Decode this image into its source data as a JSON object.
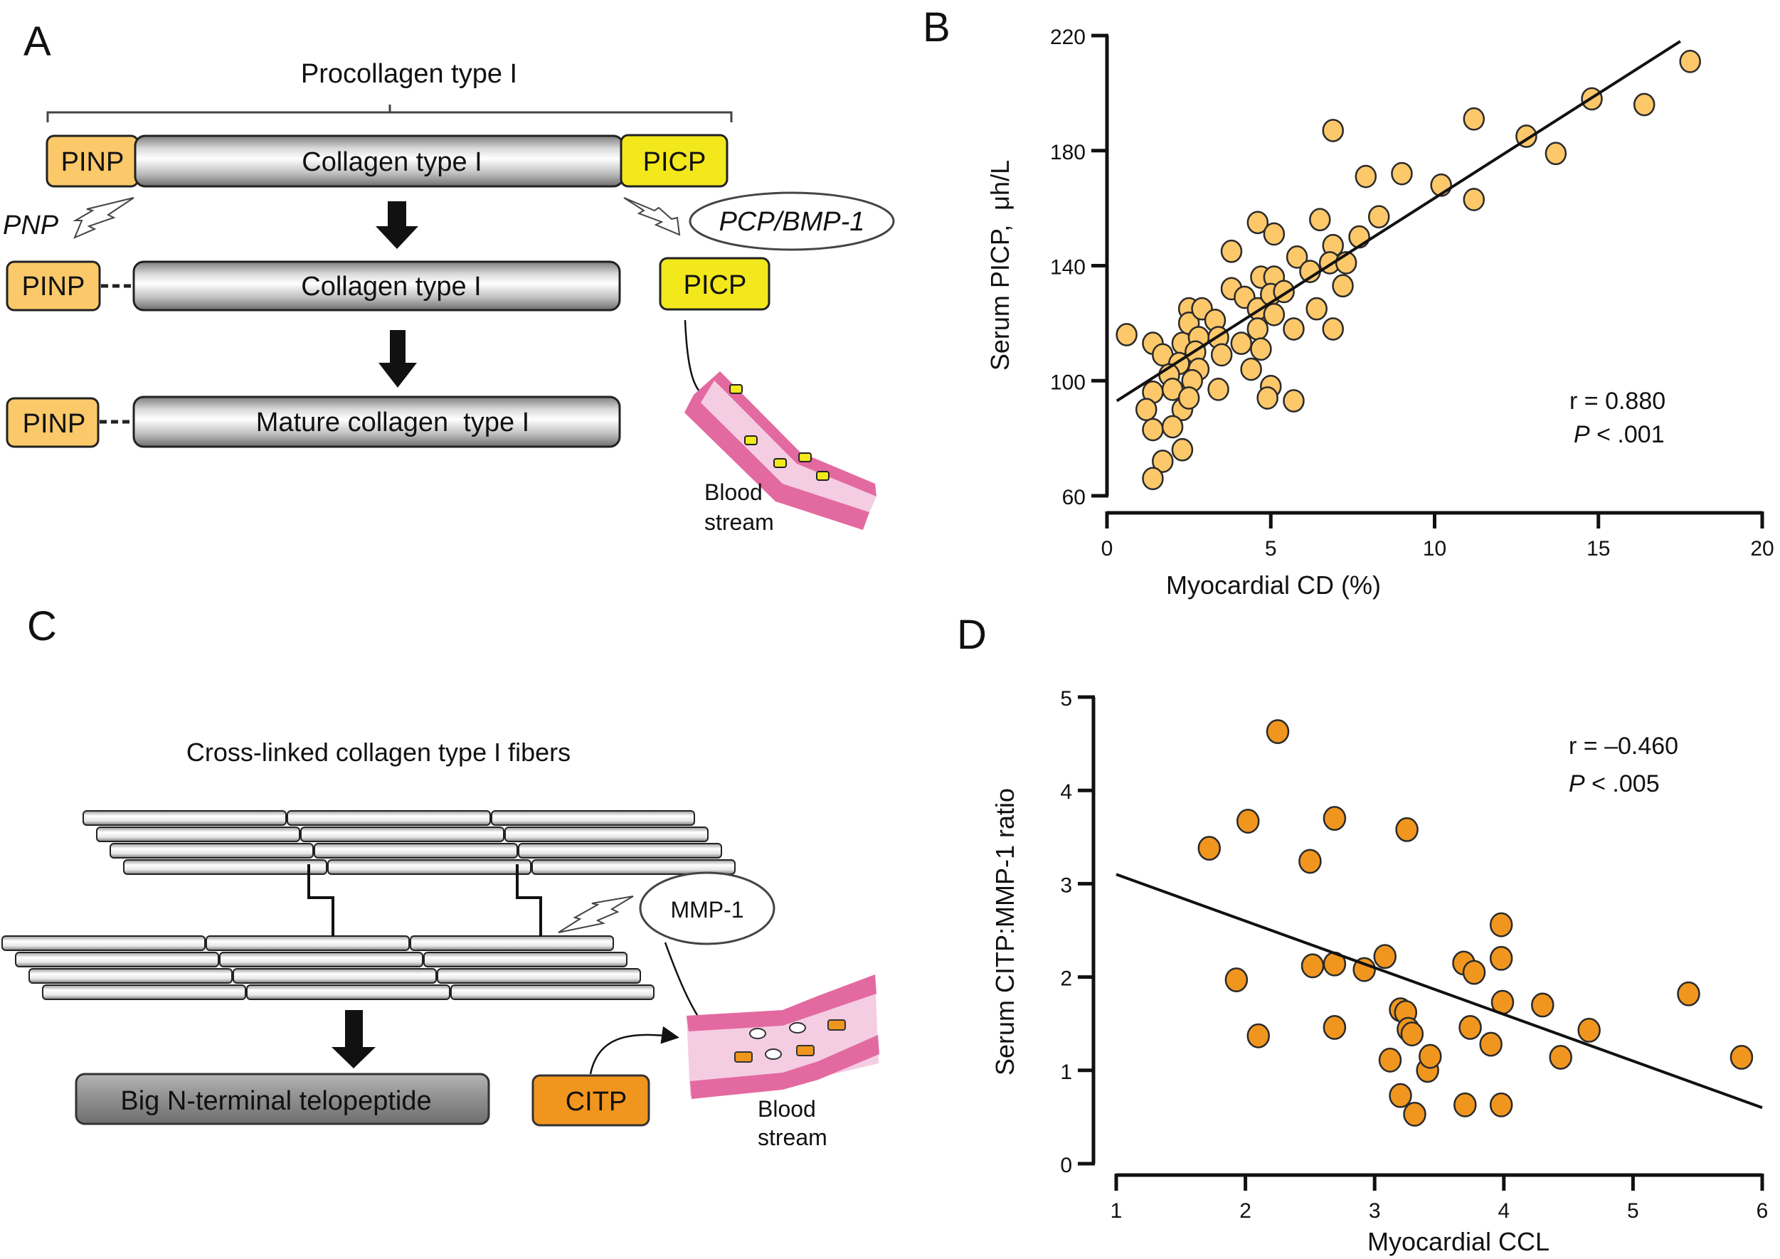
{
  "colors": {
    "pinp": "#fbc96a",
    "picp": "#f3e81c",
    "citp": "#f0961f",
    "scatter_b": "#fcc86a",
    "scatter_d": "#f0961f",
    "vessel_wall": "#e36aa0",
    "vessel_lumen": "#f4cde3",
    "telopeptide": "#8c8c8c"
  },
  "panel_a": {
    "panel_label": "A",
    "title": "Procollagen type I",
    "row1": {
      "pinp": "PINP",
      "collagen": "Collagen type I",
      "picp": "PICP"
    },
    "pnp_label": "PNP",
    "enzyme_label": "PCP/BMP-1",
    "row2": {
      "pinp": "PINP",
      "collagen": "Collagen type I",
      "picp": "PICP"
    },
    "row3": {
      "pinp": "PINP",
      "collagen": "Mature collagen  type I"
    },
    "blood_label_1": "Blood",
    "blood_label_2": "stream"
  },
  "panel_c": {
    "panel_label": "C",
    "title": "Cross-linked collagen type I fibers",
    "enzyme_label": "MMP-1",
    "product_label": "Big N-terminal telopeptide",
    "citp_label": "CITP",
    "blood_label_1": "Blood",
    "blood_label_2": "stream"
  },
  "chart_data": [
    {
      "panel_label": "B",
      "type": "scatter",
      "title": "",
      "xlabel": "Myocardial CD (%)",
      "ylabel": "Serum PICP,  μh/L",
      "xlim": [
        0,
        20
      ],
      "ylim": [
        60,
        220
      ],
      "xticks": [
        0,
        5,
        10,
        15,
        20
      ],
      "yticks": [
        60,
        100,
        140,
        180,
        220
      ],
      "grid": false,
      "annotation": {
        "r": "r = 0.880",
        "p_italic": "P",
        "p_rest": " < .001",
        "placement": "bottom-right"
      },
      "regression_line": {
        "x": [
          0.3,
          17.5
        ],
        "y": [
          93,
          218
        ]
      },
      "points": [
        [
          0.6,
          116
        ],
        [
          1.4,
          113
        ],
        [
          1.7,
          109
        ],
        [
          1.4,
          96
        ],
        [
          1.2,
          90
        ],
        [
          1.4,
          83
        ],
        [
          1.7,
          72
        ],
        [
          1.4,
          66
        ],
        [
          2.3,
          113
        ],
        [
          2.2,
          106
        ],
        [
          1.9,
          102
        ],
        [
          2.0,
          97
        ],
        [
          2.3,
          90
        ],
        [
          2.0,
          84
        ],
        [
          2.3,
          76
        ],
        [
          2.5,
          125
        ],
        [
          2.5,
          120
        ],
        [
          2.9,
          125
        ],
        [
          2.8,
          115
        ],
        [
          2.7,
          110
        ],
        [
          2.8,
          104
        ],
        [
          2.6,
          100
        ],
        [
          2.5,
          94
        ],
        [
          3.3,
          121
        ],
        [
          3.4,
          115
        ],
        [
          3.5,
          109
        ],
        [
          3.4,
          97
        ],
        [
          3.8,
          145
        ],
        [
          3.8,
          132
        ],
        [
          4.2,
          129
        ],
        [
          4.1,
          113
        ],
        [
          4.4,
          104
        ],
        [
          4.6,
          155
        ],
        [
          4.7,
          136
        ],
        [
          4.6,
          125
        ],
        [
          4.6,
          118
        ],
        [
          4.7,
          111
        ],
        [
          5.1,
          151
        ],
        [
          5.1,
          136
        ],
        [
          5.0,
          130
        ],
        [
          5.1,
          123
        ],
        [
          5.4,
          131
        ],
        [
          5.0,
          98
        ],
        [
          4.9,
          94
        ],
        [
          5.7,
          118
        ],
        [
          5.7,
          93
        ],
        [
          5.8,
          143
        ],
        [
          6.2,
          138
        ],
        [
          6.4,
          125
        ],
        [
          6.5,
          156
        ],
        [
          6.9,
          187
        ],
        [
          6.9,
          147
        ],
        [
          6.8,
          141
        ],
        [
          7.3,
          141
        ],
        [
          7.2,
          133
        ],
        [
          6.9,
          118
        ],
        [
          7.7,
          150
        ],
        [
          7.9,
          171
        ],
        [
          8.3,
          157
        ],
        [
          9.0,
          172
        ],
        [
          10.2,
          168
        ],
        [
          11.2,
          191
        ],
        [
          11.2,
          163
        ],
        [
          12.8,
          185
        ],
        [
          13.7,
          179
        ],
        [
          14.8,
          198
        ],
        [
          16.4,
          196
        ],
        [
          17.8,
          211
        ]
      ]
    },
    {
      "panel_label": "D",
      "type": "scatter",
      "title": "",
      "xlabel": "Myocardial CCL",
      "ylabel": "Serum CITP:MMP-1 ratio",
      "xlim": [
        1,
        6
      ],
      "ylim": [
        0,
        5
      ],
      "xticks": [
        1,
        2,
        3,
        4,
        5,
        6
      ],
      "yticks": [
        0,
        1,
        2,
        3,
        4,
        5
      ],
      "grid": false,
      "annotation": {
        "r": "r = –0.460",
        "p_italic": "P",
        "p_rest": " < .005",
        "placement": "top-right"
      },
      "regression_line": {
        "x": [
          1,
          6
        ],
        "y": [
          3.1,
          0.6
        ]
      },
      "points": [
        [
          2.25,
          4.63
        ],
        [
          1.72,
          3.38
        ],
        [
          2.02,
          3.67
        ],
        [
          2.69,
          3.7
        ],
        [
          2.5,
          3.24
        ],
        [
          3.25,
          3.58
        ],
        [
          1.93,
          1.97
        ],
        [
          2.1,
          1.37
        ],
        [
          2.52,
          2.12
        ],
        [
          2.69,
          2.14
        ],
        [
          2.69,
          1.46
        ],
        [
          2.92,
          2.08
        ],
        [
          3.08,
          2.22
        ],
        [
          3.12,
          1.11
        ],
        [
          3.2,
          1.65
        ],
        [
          3.24,
          1.62
        ],
        [
          3.26,
          1.44
        ],
        [
          3.29,
          1.39
        ],
        [
          3.41,
          1.0
        ],
        [
          3.43,
          1.15
        ],
        [
          3.2,
          0.73
        ],
        [
          3.31,
          0.53
        ],
        [
          3.69,
          2.15
        ],
        [
          3.77,
          2.05
        ],
        [
          3.74,
          1.46
        ],
        [
          3.9,
          1.28
        ],
        [
          3.7,
          0.63
        ],
        [
          3.98,
          2.56
        ],
        [
          3.98,
          2.2
        ],
        [
          3.99,
          1.73
        ],
        [
          3.98,
          0.63
        ],
        [
          4.3,
          1.7
        ],
        [
          4.44,
          1.14
        ],
        [
          4.66,
          1.43
        ],
        [
          5.43,
          1.82
        ],
        [
          5.84,
          1.14
        ]
      ]
    }
  ]
}
